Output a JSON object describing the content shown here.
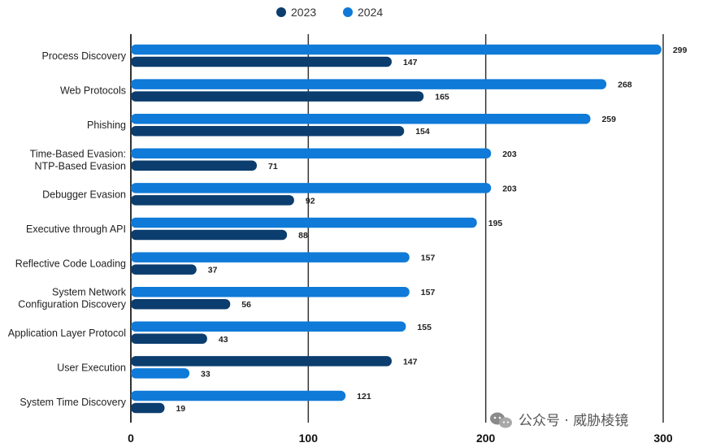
{
  "colors": {
    "series_2023": "#0b3d6e",
    "series_2024": "#0f7ad8",
    "grid": "#333333",
    "text": "#222222"
  },
  "watermark": {
    "icon": "wechat-icon",
    "text": "公众号 · 威胁棱镜"
  },
  "chart_data": {
    "type": "bar",
    "orientation": "horizontal",
    "title": "",
    "xlabel": "",
    "ylabel": "",
    "xlim": [
      0,
      300
    ],
    "xticks": [
      0,
      100,
      200,
      300
    ],
    "grid": true,
    "legend_position": "top-center",
    "categories": [
      [
        "Process Discovery"
      ],
      [
        "Web Protocols"
      ],
      [
        "Phishing"
      ],
      [
        "Time-Based Evasion:",
        "NTP-Based Evasion"
      ],
      [
        "Debugger Evasion"
      ],
      [
        "Executive through API"
      ],
      [
        "Reflective Code Loading"
      ],
      [
        "System Network",
        "Configuration Discovery"
      ],
      [
        "Application Layer Protocol"
      ],
      [
        "User Execution"
      ],
      [
        "System Time Discovery"
      ]
    ],
    "series": [
      {
        "name": "2023",
        "color": "#0b3d6e",
        "values": [
          147,
          165,
          154,
          71,
          92,
          88,
          37,
          56,
          43,
          147,
          19
        ]
      },
      {
        "name": "2024",
        "color": "#0f7ad8",
        "values": [
          299,
          268,
          259,
          203,
          203,
          195,
          157,
          157,
          155,
          33,
          121
        ]
      }
    ],
    "bar_order": [
      [
        "2024",
        "2023"
      ],
      [
        "2024",
        "2023"
      ],
      [
        "2024",
        "2023"
      ],
      [
        "2024",
        "2023"
      ],
      [
        "2024",
        "2023"
      ],
      [
        "2024",
        "2023"
      ],
      [
        "2024",
        "2023"
      ],
      [
        "2024",
        "2023"
      ],
      [
        "2024",
        "2023"
      ],
      [
        "2023",
        "2024"
      ],
      [
        "2024",
        "2023"
      ]
    ]
  }
}
